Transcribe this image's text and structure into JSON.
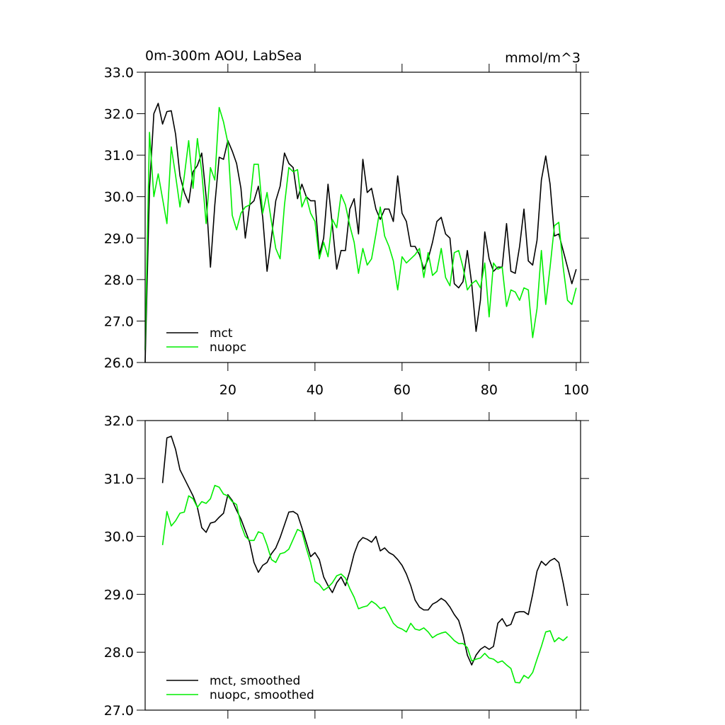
{
  "chart_data": [
    {
      "type": "line",
      "title": "0m-300m AOU, LabSea",
      "subtitle": "mmol/m^3",
      "x": [
        1,
        2,
        3,
        4,
        5,
        6,
        7,
        8,
        9,
        10,
        11,
        12,
        13,
        14,
        15,
        16,
        17,
        18,
        19,
        20,
        21,
        22,
        23,
        24,
        25,
        26,
        27,
        28,
        29,
        30,
        31,
        32,
        33,
        34,
        35,
        36,
        37,
        38,
        39,
        40,
        41,
        42,
        43,
        44,
        45,
        46,
        47,
        48,
        49,
        50,
        51,
        52,
        53,
        54,
        55,
        56,
        57,
        58,
        59,
        60,
        61,
        62,
        63,
        64,
        65,
        66,
        67,
        68,
        69,
        70,
        71,
        72,
        73,
        74,
        75,
        76,
        77,
        78,
        79,
        80,
        81,
        82,
        83,
        84,
        85,
        86,
        87,
        88,
        89,
        90,
        91,
        92,
        93,
        94,
        95,
        96,
        97,
        98,
        99,
        100
      ],
      "series": [
        {
          "name": "mct",
          "color": "#000000",
          "values": [
            26.0,
            30.2,
            32.0,
            32.25,
            31.75,
            32.05,
            32.07,
            31.5,
            30.5,
            30.1,
            29.85,
            30.6,
            30.75,
            31.05,
            30.0,
            28.3,
            29.8,
            30.95,
            30.9,
            31.35,
            31.1,
            30.8,
            30.2,
            29.0,
            29.8,
            29.9,
            30.25,
            29.5,
            28.2,
            29.0,
            29.9,
            30.25,
            31.05,
            30.8,
            30.7,
            29.95,
            30.3,
            30.0,
            29.9,
            29.9,
            28.6,
            29.0,
            30.3,
            29.3,
            28.25,
            28.7,
            28.7,
            29.7,
            29.95,
            29.1,
            30.9,
            30.1,
            30.2,
            29.7,
            29.45,
            29.7,
            29.7,
            29.4,
            30.5,
            29.6,
            29.4,
            28.8,
            28.8,
            28.6,
            28.25,
            28.5,
            28.9,
            29.4,
            29.5,
            29.1,
            29.0,
            27.9,
            27.8,
            27.95,
            28.7,
            27.9,
            26.75,
            27.5,
            29.15,
            28.5,
            28.2,
            28.3,
            28.3,
            29.35,
            28.2,
            28.15,
            28.8,
            29.7,
            28.45,
            28.35,
            28.95,
            30.4,
            30.98,
            30.3,
            29.05,
            29.1,
            28.7,
            28.3,
            27.9,
            28.25
          ]
        },
        {
          "name": "nuopc",
          "color": "#00ee00",
          "values": [
            26.3,
            31.55,
            30.0,
            30.55,
            29.95,
            29.35,
            31.2,
            30.5,
            29.75,
            30.5,
            31.35,
            30.2,
            31.4,
            30.6,
            29.35,
            30.7,
            30.4,
            32.15,
            31.8,
            31.3,
            29.55,
            29.2,
            29.6,
            29.75,
            29.8,
            30.78,
            30.78,
            29.6,
            30.1,
            29.4,
            28.75,
            28.5,
            29.8,
            30.7,
            30.6,
            30.65,
            29.75,
            30.0,
            29.6,
            29.4,
            28.5,
            28.9,
            28.55,
            29.45,
            29.25,
            30.05,
            29.8,
            29.3,
            28.9,
            28.15,
            28.75,
            28.35,
            28.5,
            29.1,
            29.75,
            29.05,
            28.8,
            28.45,
            27.75,
            28.55,
            28.4,
            28.5,
            28.6,
            28.75,
            28.05,
            28.65,
            28.1,
            28.2,
            28.75,
            28.05,
            27.85,
            28.65,
            28.7,
            28.3,
            27.75,
            27.9,
            27.98,
            27.8,
            28.4,
            27.1,
            28.4,
            28.25,
            28.3,
            27.35,
            27.75,
            27.7,
            27.5,
            27.8,
            27.75,
            26.6,
            27.3,
            28.7,
            27.4,
            28.3,
            29.3,
            29.38,
            28.3,
            27.5,
            27.4,
            27.8
          ]
        }
      ],
      "xlim": [
        1,
        101
      ],
      "xticks": [
        20,
        40,
        60,
        80,
        100
      ],
      "xtick_labels": true,
      "ylim": [
        26,
        33
      ],
      "yticks": [
        {
          "value": 26,
          "label": "26.0"
        },
        {
          "value": 27,
          "label": "27.0"
        },
        {
          "value": 28,
          "label": "28.0"
        },
        {
          "value": 29,
          "label": "29.0"
        },
        {
          "value": 30,
          "label": "30.0"
        },
        {
          "value": 31,
          "label": "31.0"
        },
        {
          "value": 32,
          "label": "32.0"
        },
        {
          "value": 33,
          "label": "33.0"
        }
      ],
      "legend": "lower left"
    },
    {
      "type": "line",
      "x": [
        5,
        6,
        7,
        8,
        9,
        10,
        11,
        12,
        13,
        14,
        15,
        16,
        17,
        18,
        19,
        20,
        21,
        22,
        23,
        24,
        25,
        26,
        27,
        28,
        29,
        30,
        31,
        32,
        33,
        34,
        35,
        36,
        37,
        38,
        39,
        40,
        41,
        42,
        43,
        44,
        45,
        46,
        47,
        48,
        49,
        50,
        51,
        52,
        53,
        54,
        55,
        56,
        57,
        58,
        59,
        60,
        61,
        62,
        63,
        64,
        65,
        66,
        67,
        68,
        69,
        70,
        71,
        72,
        73,
        74,
        75,
        76,
        77,
        78,
        79,
        80,
        81,
        82,
        83,
        84,
        85,
        86,
        87,
        88,
        89,
        90,
        91,
        92,
        93,
        94,
        95,
        96,
        97,
        98
      ],
      "series": [
        {
          "name": "mct, smoothed",
          "color": "#000000",
          "values": [
            30.92,
            31.7,
            31.73,
            31.5,
            31.15,
            31.0,
            30.85,
            30.7,
            30.5,
            30.15,
            30.07,
            30.23,
            30.25,
            30.33,
            30.4,
            30.72,
            30.62,
            30.45,
            30.3,
            30.1,
            29.9,
            29.55,
            29.38,
            29.5,
            29.55,
            29.7,
            29.8,
            29.98,
            30.2,
            30.42,
            30.43,
            30.38,
            30.15,
            29.9,
            29.65,
            29.72,
            29.6,
            29.3,
            29.15,
            29.03,
            29.2,
            29.3,
            29.15,
            29.4,
            29.7,
            29.9,
            29.98,
            29.95,
            29.9,
            30.0,
            29.75,
            29.8,
            29.72,
            29.68,
            29.6,
            29.5,
            29.35,
            29.15,
            28.9,
            28.78,
            28.73,
            28.73,
            28.83,
            28.87,
            28.93,
            28.88,
            28.78,
            28.65,
            28.55,
            28.3,
            27.95,
            27.78,
            27.95,
            28.05,
            28.1,
            28.05,
            28.1,
            28.5,
            28.58,
            28.45,
            28.48,
            28.68,
            28.7,
            28.7,
            28.65,
            29.0,
            29.4,
            29.57,
            29.5,
            29.58,
            29.62,
            29.55,
            29.2,
            28.8
          ]
        },
        {
          "name": "nuopc, smoothed",
          "color": "#00ee00",
          "values": [
            29.85,
            30.43,
            30.18,
            30.27,
            30.4,
            30.42,
            30.7,
            30.65,
            30.5,
            30.6,
            30.57,
            30.65,
            30.88,
            30.85,
            30.73,
            30.7,
            30.6,
            30.55,
            30.2,
            30.0,
            29.93,
            29.93,
            30.08,
            30.05,
            29.85,
            29.6,
            29.55,
            29.7,
            29.72,
            29.78,
            29.95,
            30.12,
            30.08,
            29.8,
            29.55,
            29.22,
            29.17,
            29.07,
            29.12,
            29.2,
            29.32,
            29.35,
            29.28,
            29.1,
            28.95,
            28.75,
            28.78,
            28.8,
            28.88,
            28.83,
            28.75,
            28.78,
            28.65,
            28.5,
            28.43,
            28.4,
            28.35,
            28.5,
            28.4,
            28.38,
            28.42,
            28.35,
            28.25,
            28.3,
            28.33,
            28.35,
            28.28,
            28.2,
            28.15,
            28.15,
            28.08,
            27.85,
            27.88,
            27.9,
            27.98,
            27.9,
            27.88,
            27.82,
            27.85,
            27.78,
            27.72,
            27.48,
            27.47,
            27.6,
            27.55,
            27.65,
            27.88,
            28.1,
            28.35,
            28.37,
            28.18,
            28.25,
            28.2,
            28.27
          ]
        }
      ],
      "xlim": [
        1,
        101
      ],
      "xticks": [
        20,
        40,
        60,
        80,
        100
      ],
      "xtick_labels": false,
      "ylim": [
        27,
        32
      ],
      "yticks": [
        {
          "value": 27,
          "label": "27.0"
        },
        {
          "value": 28,
          "label": "28.0"
        },
        {
          "value": 29,
          "label": "29.0"
        },
        {
          "value": 30,
          "label": "30.0"
        },
        {
          "value": 31,
          "label": "31.0"
        },
        {
          "value": 32,
          "label": "32.0"
        }
      ],
      "legend": "lower left"
    }
  ]
}
